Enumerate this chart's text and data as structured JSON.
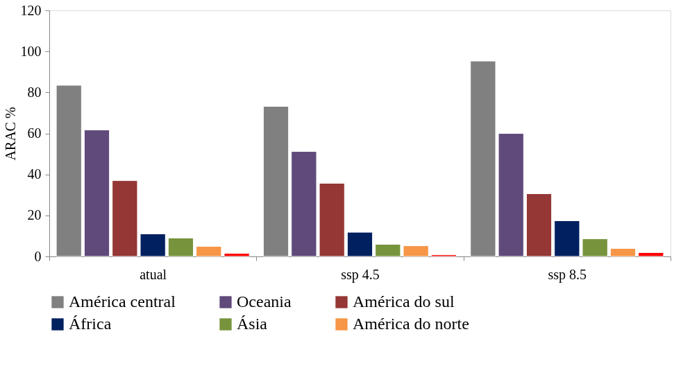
{
  "chart_data": {
    "type": "bar",
    "ylabel": "ARAC %",
    "categories": [
      "atual",
      "ssp 4.5",
      "ssp 8.5"
    ],
    "series": [
      {
        "name": "América central",
        "color": "#808080",
        "values": [
          83.5,
          73.2,
          95.3
        ]
      },
      {
        "name": "Oceania",
        "color": "#604a7b",
        "values": [
          61.7,
          51.2,
          60.0
        ]
      },
      {
        "name": "América do sul",
        "color": "#953735",
        "values": [
          37.0,
          35.7,
          30.6
        ]
      },
      {
        "name": "África",
        "color": "#002060",
        "values": [
          11.0,
          11.8,
          17.4
        ]
      },
      {
        "name": "Ásia",
        "color": "#77933c",
        "values": [
          9.0,
          5.9,
          8.6
        ]
      },
      {
        "name": "América do norte",
        "color": "#f79646",
        "values": [
          4.9,
          5.2,
          3.9
        ]
      },
      {
        "color": "#ff0000",
        "values": [
          1.5,
          0.8,
          1.9
        ]
      }
    ],
    "ylim": [
      0,
      120
    ],
    "yticks": [
      0,
      20,
      40,
      60,
      80,
      100,
      120
    ],
    "grid": false,
    "legend": "bottom"
  }
}
